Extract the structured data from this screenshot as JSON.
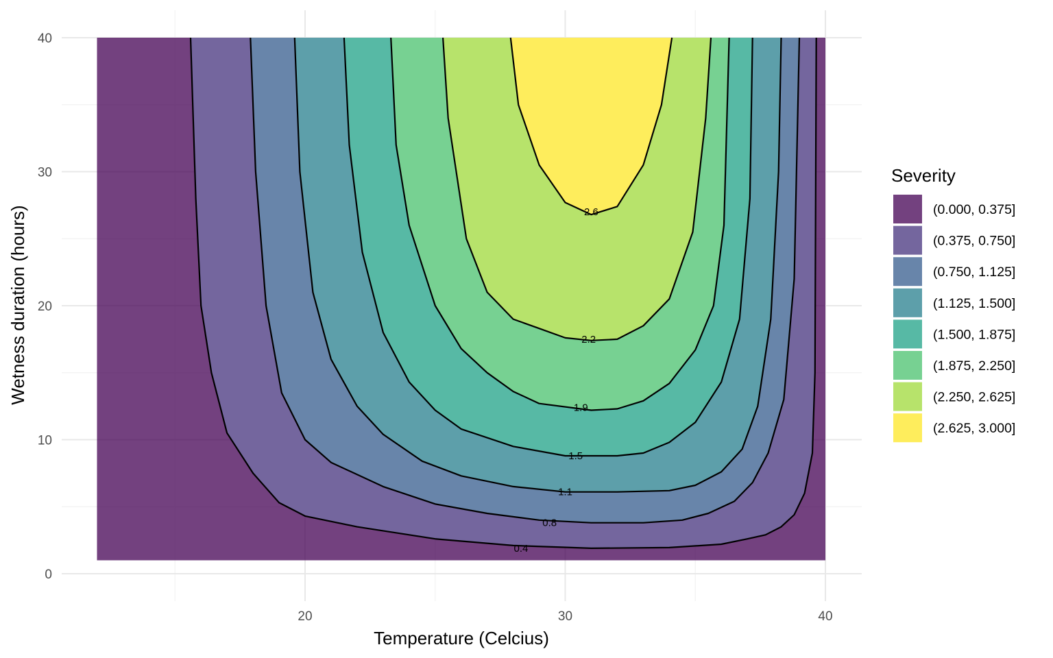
{
  "chart_data": {
    "type": "filled-contour",
    "xlabel": "Temperature (Celcius)",
    "ylabel": "Wetness duration (hours)",
    "xlim": [
      12,
      40
    ],
    "ylim": [
      1,
      40
    ],
    "x_ticks": [
      20,
      30,
      40
    ],
    "y_ticks": [
      0,
      10,
      20,
      30,
      40
    ],
    "grid": true,
    "legend": {
      "title": "Severity",
      "placement": "right",
      "entries": [
        {
          "label": "(0.000, 0.375]",
          "color": "#440154"
        },
        {
          "label": "(0.375, 0.750]",
          "color": "#46337E"
        },
        {
          "label": "(0.750, 1.125]",
          "color": "#365C8D"
        },
        {
          "label": "(1.125, 1.500]",
          "color": "#277F8E"
        },
        {
          "label": "(1.500, 1.875]",
          "color": "#1FA187"
        },
        {
          "label": "(1.875, 2.250]",
          "color": "#4AC16D"
        },
        {
          "label": "(2.250, 2.625]",
          "color": "#9FDA3A"
        },
        {
          "label": "(2.625, 3.000]",
          "color": "#FDE725"
        }
      ]
    },
    "fill_opacity": 0.75,
    "contours": [
      {
        "level": 0.4,
        "label": "0.4",
        "label_at": [
          28.3,
          1.9
        ],
        "points": [
          [
            15.6,
            40
          ],
          [
            15.8,
            28
          ],
          [
            16.0,
            20
          ],
          [
            16.4,
            15
          ],
          [
            17,
            10.5
          ],
          [
            18,
            7.5
          ],
          [
            19,
            5.3
          ],
          [
            20,
            4.3
          ],
          [
            22,
            3.5
          ],
          [
            25,
            2.6
          ],
          [
            28,
            2.1
          ],
          [
            31,
            1.9
          ],
          [
            34,
            1.95
          ],
          [
            36,
            2.2
          ],
          [
            37,
            2.6
          ],
          [
            37.7,
            2.9
          ],
          [
            38.3,
            3.5
          ],
          [
            38.8,
            4.4
          ],
          [
            39.2,
            6
          ],
          [
            39.5,
            9
          ],
          [
            39.6,
            15
          ],
          [
            39.65,
            40
          ]
        ]
      },
      {
        "level": 0.8,
        "label": "0.8",
        "label_at": [
          29.4,
          3.8
        ],
        "points": [
          [
            17.9,
            40
          ],
          [
            18.1,
            30
          ],
          [
            18.5,
            20
          ],
          [
            19.1,
            13.5
          ],
          [
            20,
            10
          ],
          [
            21,
            8.3
          ],
          [
            23,
            6.5
          ],
          [
            25,
            5.2
          ],
          [
            27,
            4.5
          ],
          [
            29,
            4
          ],
          [
            31,
            3.8
          ],
          [
            33,
            3.8
          ],
          [
            34.5,
            4
          ],
          [
            35.5,
            4.5
          ],
          [
            36.5,
            5.4
          ],
          [
            37.2,
            6.8
          ],
          [
            37.8,
            9
          ],
          [
            38.4,
            13
          ],
          [
            38.8,
            22
          ],
          [
            39.0,
            40
          ]
        ]
      },
      {
        "level": 1.1,
        "label": "1.1",
        "label_at": [
          30.0,
          6.1
        ],
        "points": [
          [
            19.6,
            40
          ],
          [
            19.8,
            30
          ],
          [
            20.3,
            21
          ],
          [
            21,
            16
          ],
          [
            22,
            12.5
          ],
          [
            23,
            10.4
          ],
          [
            24.5,
            8.4
          ],
          [
            26,
            7.3
          ],
          [
            28,
            6.5
          ],
          [
            30,
            6.1
          ],
          [
            32,
            6.1
          ],
          [
            34,
            6.2
          ],
          [
            35,
            6.6
          ],
          [
            36,
            7.6
          ],
          [
            36.8,
            9.3
          ],
          [
            37.4,
            12.5
          ],
          [
            37.9,
            19
          ],
          [
            38.2,
            30
          ],
          [
            38.3,
            40
          ]
        ]
      },
      {
        "level": 1.5,
        "label": "1.5",
        "label_at": [
          30.4,
          8.8
        ],
        "points": [
          [
            21.5,
            40
          ],
          [
            21.7,
            32
          ],
          [
            22.2,
            24
          ],
          [
            23,
            18
          ],
          [
            24,
            14.3
          ],
          [
            25,
            12.2
          ],
          [
            26,
            10.8
          ],
          [
            28,
            9.5
          ],
          [
            30,
            8.8
          ],
          [
            32,
            8.8
          ],
          [
            33,
            9
          ],
          [
            34,
            9.8
          ],
          [
            35,
            11.3
          ],
          [
            36,
            14.3
          ],
          [
            36.7,
            19
          ],
          [
            37.1,
            28
          ],
          [
            37.2,
            40
          ]
        ]
      },
      {
        "level": 1.9,
        "label": "1.9",
        "label_at": [
          30.6,
          12.4
        ],
        "points": [
          [
            23.3,
            40
          ],
          [
            23.5,
            32
          ],
          [
            24,
            26
          ],
          [
            25,
            20
          ],
          [
            26,
            16.8
          ],
          [
            27,
            15
          ],
          [
            28,
            13.6
          ],
          [
            29,
            12.7
          ],
          [
            31,
            12.2
          ],
          [
            32,
            12.3
          ],
          [
            33,
            12.9
          ],
          [
            34,
            14.2
          ],
          [
            35,
            16.7
          ],
          [
            35.7,
            20
          ],
          [
            36.1,
            26
          ],
          [
            36.3,
            40
          ]
        ]
      },
      {
        "level": 2.2,
        "label": "2.2",
        "label_at": [
          30.9,
          17.5
        ],
        "points": [
          [
            25.3,
            40
          ],
          [
            25.5,
            34
          ],
          [
            26.2,
            25
          ],
          [
            27,
            21
          ],
          [
            28,
            19
          ],
          [
            29,
            18.3
          ],
          [
            30,
            17.6
          ],
          [
            31,
            17.4
          ],
          [
            32,
            17.5
          ],
          [
            33,
            18.5
          ],
          [
            34,
            20.5
          ],
          [
            34.9,
            25.5
          ],
          [
            35.4,
            34
          ],
          [
            35.6,
            40
          ]
        ]
      },
      {
        "level": 2.6,
        "label": "2.6",
        "label_at": [
          31.0,
          27.0
        ],
        "points": [
          [
            27.9,
            40
          ],
          [
            28.2,
            35
          ],
          [
            29,
            30.5
          ],
          [
            30,
            27.7
          ],
          [
            31,
            26.8
          ],
          [
            32,
            27.4
          ],
          [
            33,
            30.5
          ],
          [
            33.7,
            35
          ],
          [
            34.1,
            40
          ]
        ]
      }
    ]
  }
}
